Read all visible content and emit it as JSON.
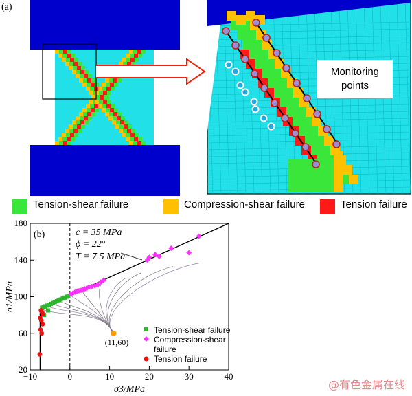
{
  "panel_a": {
    "label": "(a)",
    "callout": [
      "Monitoring",
      "points"
    ]
  },
  "legend_a": [
    {
      "label": "Tension-shear failure",
      "color": "#39e639"
    },
    {
      "label": "Compression-shear failure",
      "color": "#ffc000"
    },
    {
      "label": "Tension failure",
      "color": "#ff1a1a"
    }
  ],
  "colors": {
    "platen": "#0000cc",
    "specimen": "#22e0e8",
    "green": "#39e639",
    "orange": "#ffc000",
    "red": "#ff1a1a",
    "magenta": "#ff33ff",
    "peak": "#ff9900"
  },
  "panel_b": {
    "label": "(b)",
    "params": [
      "c = 35 MPa",
      "ϕ = 22°",
      "T = 7.5 MPa"
    ],
    "peak_label": "(11,60)",
    "legend": [
      {
        "label": "Tension-shear failure",
        "marker": "square",
        "color": "#2db52d"
      },
      {
        "label": "Compression-shear",
        "label2": "failure",
        "marker": "diamond",
        "color": "#ff33ff"
      },
      {
        "label": "Tension failure",
        "marker": "circle",
        "color": "#ee1111"
      }
    ]
  },
  "chart_data": {
    "type": "scatter",
    "xlabel": "σ3/MPa",
    "ylabel": "σ1/MPa",
    "xlim": [
      -10,
      40
    ],
    "ylim": [
      20,
      180
    ],
    "xticks": [
      -10,
      0,
      10,
      20,
      30,
      40
    ],
    "yticks": [
      20,
      60,
      100,
      140,
      180
    ],
    "envelope": {
      "x": [
        -7.5,
        40
      ],
      "y": [
        87,
        180
      ]
    },
    "tension_cutoff_x": -7.5,
    "vertical_dashed_x": 0,
    "series": [
      {
        "name": "Tension-shear failure",
        "marker": "square",
        "x": [
          -7,
          -6.6,
          -6.2,
          -5.8,
          -5.3,
          -4.8,
          -4.3,
          -3.8,
          -3.3,
          -2.8,
          -2.3,
          -1.8,
          -1.3,
          -0.8,
          -0.4,
          -5.5,
          -6.5
        ],
        "y": [
          88,
          88.8,
          89.5,
          90.3,
          91.2,
          92.2,
          93.2,
          94.1,
          95.1,
          96.1,
          97,
          98,
          99,
          100,
          100.8,
          85,
          80
        ]
      },
      {
        "name": "Compression-shear failure",
        "marker": "diamond",
        "x": [
          0.3,
          0.8,
          1.3,
          1.8,
          2.3,
          2.8,
          3.3,
          3.8,
          4.3,
          4.8,
          5.5,
          6.3,
          7,
          7.8,
          8.5,
          19.5,
          20,
          21.5,
          22.5,
          25.5,
          30,
          32.5
        ],
        "y": [
          103,
          104,
          105,
          106,
          106.5,
          107,
          108,
          108.5,
          109.5,
          110.5,
          111,
          112,
          113,
          116,
          118,
          140,
          143,
          146,
          144,
          153,
          148,
          166
        ]
      },
      {
        "name": "Tension failure",
        "marker": "circle",
        "x": [
          -7.3,
          -7,
          -6.8,
          -7.5,
          -7.2,
          -6.9,
          -7.4,
          -7.1,
          -7.6
        ],
        "y": [
          85,
          83,
          81,
          77,
          74,
          70,
          64,
          60,
          37
        ]
      }
    ],
    "peak_point": {
      "x": 11,
      "y": 60
    }
  }
}
